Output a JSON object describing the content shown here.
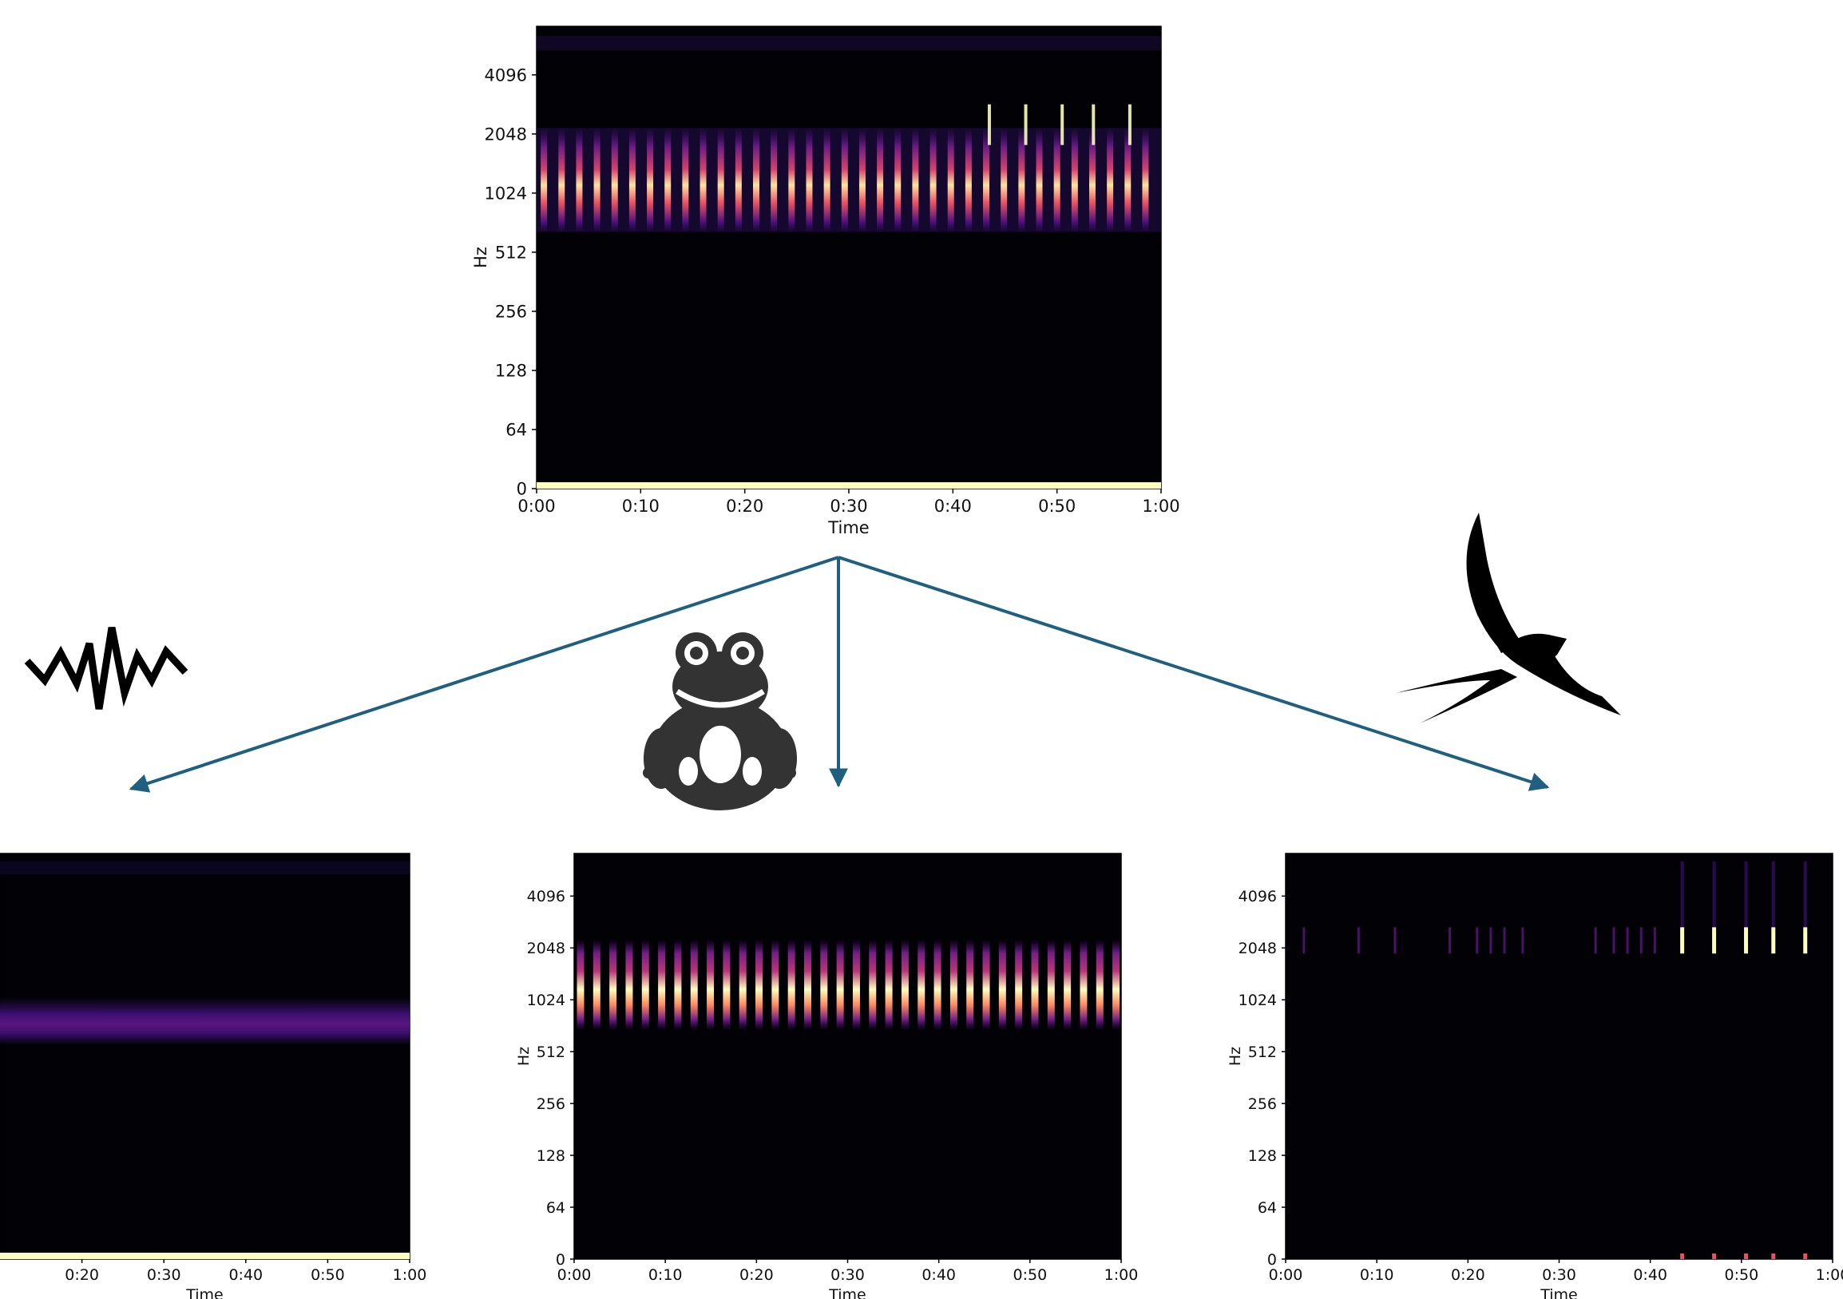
{
  "figure": {
    "accent_color": "#1f5f7f",
    "icons": [
      "noise-wave-icon",
      "frog-icon",
      "bird-icon"
    ]
  },
  "chart_data": [
    {
      "id": "mixture",
      "type": "heatmap",
      "title": "",
      "xlabel": "Time",
      "ylabel": "Hz",
      "x_ticks": [
        "0:00",
        "0:10",
        "0:20",
        "0:30",
        "0:40",
        "0:50",
        "1:00"
      ],
      "y_ticks": [
        "0",
        "64",
        "128",
        "256",
        "512",
        "1024",
        "2048",
        "4096"
      ],
      "xlim_seconds": [
        0,
        60
      ],
      "y_scale": "log2",
      "colormap": "magma",
      "content": "frog call pulses ~700-2100 Hz plus bird chirps ~2000-2600 Hz near the end and a broadband floor at 0 Hz"
    },
    {
      "id": "noise",
      "type": "heatmap",
      "title": "",
      "xlabel": "Time",
      "ylabel": "",
      "x_ticks": [
        "0:20",
        "0:30",
        "0:40",
        "0:50",
        "1:00"
      ],
      "y_scale": "log2",
      "colormap": "magma",
      "content": "steady faint band near 800 Hz and a bright strip at 0 Hz"
    },
    {
      "id": "frog",
      "type": "heatmap",
      "title": "",
      "xlabel": "Time",
      "ylabel": "Hz",
      "x_ticks": [
        "0:00",
        "0:10",
        "0:20",
        "0:30",
        "0:40",
        "0:50",
        "1:00"
      ],
      "y_ticks": [
        "0",
        "64",
        "128",
        "256",
        "512",
        "1024",
        "2048",
        "4096"
      ],
      "xlim_seconds": [
        0,
        60
      ],
      "y_scale": "log2",
      "colormap": "magma",
      "content": "regular vertical pulses about every 1.3 s spanning ~700-2200 Hz"
    },
    {
      "id": "bird",
      "type": "heatmap",
      "title": "",
      "xlabel": "Time",
      "ylabel": "Hz",
      "x_ticks": [
        "0:00",
        "0:10",
        "0:20",
        "0:30",
        "0:40",
        "0:50",
        "1:00"
      ],
      "y_ticks": [
        "0",
        "64",
        "128",
        "256",
        "512",
        "1024",
        "2048",
        "4096"
      ],
      "xlim_seconds": [
        0,
        60
      ],
      "y_scale": "log2",
      "colormap": "magma",
      "content": "faint chirps near 2300 Hz, strong chirps at ~43, 47, 50, 53, 57 s"
    }
  ]
}
